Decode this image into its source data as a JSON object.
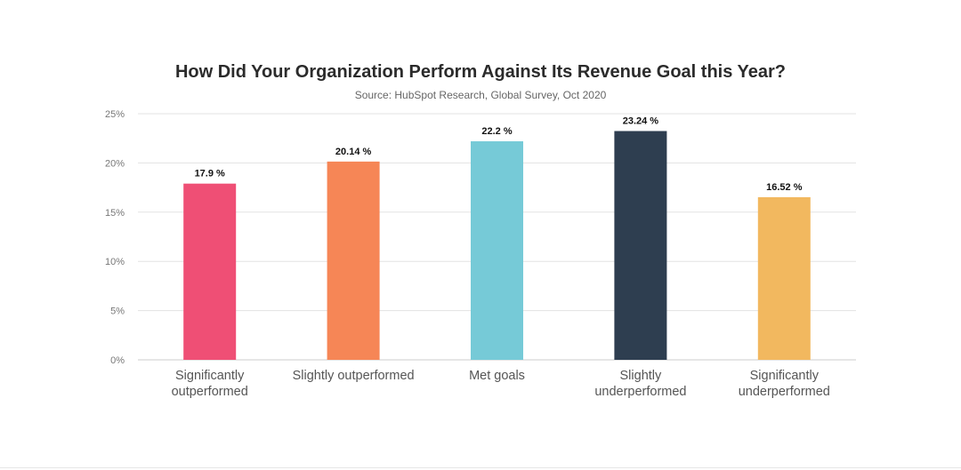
{
  "chart_data": {
    "type": "bar",
    "title": "How Did Your Organization Perform Against Its Revenue Goal this Year?",
    "subtitle": "Source: HubSpot Research, Global Survey, Oct 2020",
    "categories": [
      [
        "Significantly",
        "outperformed"
      ],
      [
        "Slightly outperformed"
      ],
      [
        "Met goals"
      ],
      [
        "Slightly",
        "underperformed"
      ],
      [
        "Significantly",
        "underperformed"
      ]
    ],
    "values": [
      17.9,
      20.14,
      22.2,
      23.24,
      16.52
    ],
    "value_labels": [
      "17.9 %",
      "20.14 %",
      "22.2 %",
      "23.24 %",
      "16.52 %"
    ],
    "colors": [
      "#ef4f75",
      "#f68656",
      "#76cad7",
      "#2e3e50",
      "#f2b85f"
    ],
    "yticks": [
      "0%",
      "5%",
      "10%",
      "15%",
      "20%",
      "25%"
    ],
    "ylim": [
      0,
      25
    ],
    "grid": true,
    "legend": "none"
  }
}
